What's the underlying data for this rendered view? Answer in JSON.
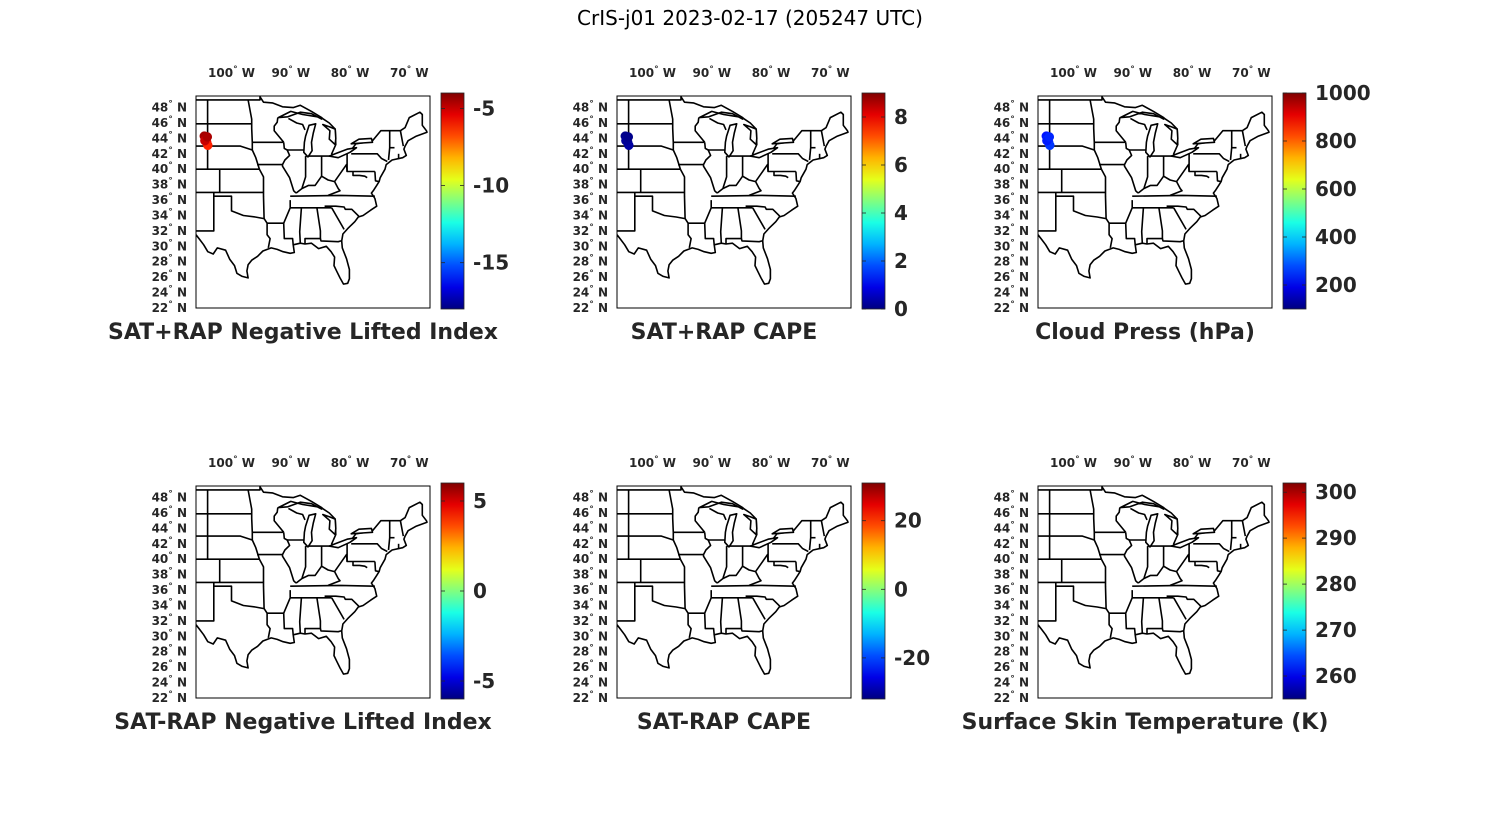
{
  "figure": {
    "title": "CrIS-j01 2023-02-17 (205247 UTC)"
  },
  "axes": {
    "lon_ticks": [
      {
        "deg": "100",
        "hemi": "W"
      },
      {
        "deg": "90",
        "hemi": "W"
      },
      {
        "deg": "80",
        "hemi": "W"
      },
      {
        "deg": "70",
        "hemi": "W"
      }
    ],
    "lat_ticks": [
      {
        "deg": "48",
        "hemi": "N"
      },
      {
        "deg": "46",
        "hemi": "N"
      },
      {
        "deg": "44",
        "hemi": "N"
      },
      {
        "deg": "42",
        "hemi": "N"
      },
      {
        "deg": "40",
        "hemi": "N"
      },
      {
        "deg": "38",
        "hemi": "N"
      },
      {
        "deg": "36",
        "hemi": "N"
      },
      {
        "deg": "34",
        "hemi": "N"
      },
      {
        "deg": "32",
        "hemi": "N"
      },
      {
        "deg": "30",
        "hemi": "N"
      },
      {
        "deg": "28",
        "hemi": "N"
      },
      {
        "deg": "26",
        "hemi": "N"
      },
      {
        "deg": "24",
        "hemi": "N"
      },
      {
        "deg": "22",
        "hemi": "N"
      }
    ],
    "degree_symbol": "°"
  },
  "colormap": "jet",
  "panels": [
    {
      "id": "sat-rap-pos-lifted-index",
      "title": "SAT+RAP Negative Lifted Index",
      "colorbar": {
        "min": -18,
        "max": -4,
        "ticks": [
          {
            "value": -5,
            "label": "-5"
          },
          {
            "value": -10,
            "label": "-10"
          },
          {
            "value": -15,
            "label": "-15"
          }
        ]
      },
      "data_points": [
        {
          "lon": -104.6,
          "lat": 44.3,
          "value": -4.5
        },
        {
          "lon": -104.4,
          "lat": 43.9,
          "value": -4.8
        },
        {
          "lon": -104.2,
          "lat": 43.5,
          "value": -5.5
        },
        {
          "lon": -104.0,
          "lat": 43.1,
          "value": -6.2
        },
        {
          "lon": -104.5,
          "lat": 43.7,
          "value": -5.0
        },
        {
          "lon": -104.1,
          "lat": 44.2,
          "value": -4.6
        }
      ]
    },
    {
      "id": "sat-rap-pos-cape",
      "title": "SAT+RAP CAPE",
      "colorbar": {
        "min": 0,
        "max": 9,
        "ticks": [
          {
            "value": 0,
            "label": "0"
          },
          {
            "value": 2,
            "label": "2"
          },
          {
            "value": 4,
            "label": "4"
          },
          {
            "value": 6,
            "label": "6"
          },
          {
            "value": 8,
            "label": "8"
          }
        ]
      },
      "data_points": [
        {
          "lon": -104.6,
          "lat": 44.3,
          "value": 0.1
        },
        {
          "lon": -104.4,
          "lat": 43.9,
          "value": 0.2
        },
        {
          "lon": -104.2,
          "lat": 43.5,
          "value": 0.1
        },
        {
          "lon": -104.0,
          "lat": 43.1,
          "value": 0.3
        },
        {
          "lon": -104.5,
          "lat": 43.7,
          "value": 0.2
        },
        {
          "lon": -104.1,
          "lat": 44.2,
          "value": 0.1
        }
      ]
    },
    {
      "id": "cloud-press",
      "title": "Cloud Press (hPa)",
      "colorbar": {
        "min": 100,
        "max": 1000,
        "ticks": [
          {
            "value": 200,
            "label": "200"
          },
          {
            "value": 400,
            "label": "400"
          },
          {
            "value": 600,
            "label": "600"
          },
          {
            "value": 800,
            "label": "800"
          },
          {
            "value": 1000,
            "label": "1000"
          }
        ]
      },
      "data_points": [
        {
          "lon": -104.6,
          "lat": 44.3,
          "value": 230
        },
        {
          "lon": -104.4,
          "lat": 43.9,
          "value": 250
        },
        {
          "lon": -104.2,
          "lat": 43.5,
          "value": 240
        },
        {
          "lon": -104.0,
          "lat": 43.1,
          "value": 260
        },
        {
          "lon": -104.5,
          "lat": 43.7,
          "value": 235
        },
        {
          "lon": -104.1,
          "lat": 44.2,
          "value": 245
        }
      ]
    },
    {
      "id": "sat-minus-rap-lifted-index",
      "title": "SAT-RAP Negative Lifted Index",
      "colorbar": {
        "min": -6,
        "max": 6,
        "ticks": [
          {
            "value": 5,
            "label": "5"
          },
          {
            "value": 0,
            "label": "0"
          },
          {
            "value": -5,
            "label": "-5"
          }
        ]
      },
      "data_points": []
    },
    {
      "id": "sat-minus-rap-cape",
      "title": "SAT-RAP CAPE",
      "colorbar": {
        "min": -32,
        "max": 31,
        "ticks": [
          {
            "value": 20,
            "label": "20"
          },
          {
            "value": 0,
            "label": "0"
          },
          {
            "value": -20,
            "label": "-20"
          }
        ]
      },
      "data_points": []
    },
    {
      "id": "surface-skin-temp",
      "title": "Surface Skin Temperature (K)",
      "colorbar": {
        "min": 255,
        "max": 302,
        "ticks": [
          {
            "value": 260,
            "label": "260"
          },
          {
            "value": 270,
            "label": "270"
          },
          {
            "value": 280,
            "label": "280"
          },
          {
            "value": 290,
            "label": "290"
          },
          {
            "value": 300,
            "label": "300"
          }
        ]
      },
      "data_points": []
    }
  ]
}
